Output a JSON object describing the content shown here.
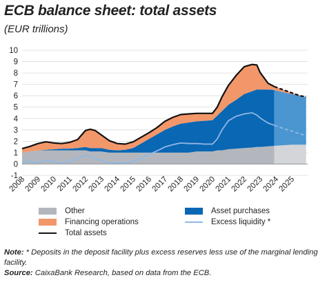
{
  "title": "ECB balance sheet: total assets",
  "subtitle": "(EUR trillions)",
  "note_label": "Note:",
  "note_text": "* Deposits in the deposit facility plus excess reserves less use of the marginal lending facility.",
  "source_label": "Source:",
  "source_text": "CaixaBank Research, based on data from the ECB.",
  "colors": {
    "other": "#b3b7bd",
    "other_proj": "#d3d5d9",
    "asset_purchases": "#0a67b3",
    "asset_purchases_proj": "#4b95d0",
    "financing_operations": "#f2976a",
    "excess_liquidity": "#8fb8e6",
    "total_assets": "#111111"
  },
  "legend": [
    {
      "key": "other",
      "label": "Other",
      "kind": "rect"
    },
    {
      "key": "asset_purchases",
      "label": "Asset purchases",
      "kind": "rect"
    },
    {
      "key": "financing_operations",
      "label": "Financing operations",
      "kind": "rect"
    },
    {
      "key": "excess_liquidity",
      "label": "Excess liquidity *",
      "kind": "line"
    },
    {
      "key": "total_assets",
      "label": "Total assets",
      "kind": "line"
    }
  ],
  "chart_data": {
    "type": "area",
    "ylim": [
      -1,
      10
    ],
    "yticks": [
      -1,
      0,
      1,
      2,
      3,
      4,
      5,
      6,
      7,
      8,
      9,
      10
    ],
    "xlim": [
      2008,
      2026
    ],
    "xticks": [
      "2008",
      "2009",
      "2010",
      "2011",
      "2012",
      "2013",
      "2014",
      "2015",
      "2016",
      "2017",
      "2018",
      "2019",
      "2020",
      "2021",
      "2022",
      "2023",
      "2024",
      "2025"
    ],
    "projection_start": 2023.9,
    "x": [
      2008.0,
      2008.5,
      2009.0,
      2009.5,
      2010.0,
      2010.5,
      2011.0,
      2011.5,
      2012.0,
      2012.3,
      2012.6,
      2013.0,
      2013.5,
      2014.0,
      2014.5,
      2015.0,
      2015.5,
      2016.0,
      2016.5,
      2017.0,
      2017.5,
      2018.0,
      2018.5,
      2019.0,
      2019.5,
      2020.0,
      2020.3,
      2020.6,
      2021.0,
      2021.5,
      2022.0,
      2022.5,
      2022.8,
      2023.0,
      2023.5,
      2023.9,
      2024.5,
      2025.0,
      2025.5,
      2025.9
    ],
    "series": [
      {
        "name": "Other",
        "key": "other",
        "values": [
          1.0,
          1.1,
          1.2,
          1.2,
          1.2,
          1.2,
          1.2,
          1.2,
          1.2,
          1.1,
          1.1,
          1.1,
          1.0,
          1.0,
          1.0,
          1.0,
          1.0,
          1.0,
          1.0,
          1.0,
          1.0,
          1.0,
          1.0,
          1.1,
          1.1,
          1.1,
          1.2,
          1.2,
          1.3,
          1.35,
          1.4,
          1.45,
          1.5,
          1.5,
          1.55,
          1.6,
          1.65,
          1.7,
          1.7,
          1.7
        ]
      },
      {
        "name": "Asset purchases",
        "key": "asset_purchases",
        "values": [
          0.0,
          0.0,
          0.0,
          0.05,
          0.1,
          0.15,
          0.15,
          0.2,
          0.3,
          0.3,
          0.3,
          0.3,
          0.25,
          0.2,
          0.25,
          0.4,
          0.8,
          1.2,
          1.6,
          2.0,
          2.3,
          2.55,
          2.65,
          2.65,
          2.7,
          2.75,
          3.05,
          3.45,
          3.9,
          4.3,
          4.75,
          4.95,
          5.05,
          5.05,
          5.0,
          4.9,
          4.65,
          4.45,
          4.3,
          4.2
        ]
      },
      {
        "name": "Financing operations",
        "key": "financing_operations",
        "values": [
          0.35,
          0.45,
          0.6,
          0.7,
          0.55,
          0.45,
          0.55,
          0.75,
          1.45,
          1.65,
          1.55,
          1.15,
          0.8,
          0.6,
          0.5,
          0.55,
          0.55,
          0.55,
          0.6,
          0.75,
          0.8,
          0.8,
          0.75,
          0.7,
          0.65,
          0.6,
          0.75,
          1.25,
          1.7,
          2.15,
          2.4,
          2.35,
          2.15,
          1.5,
          0.55,
          0.3,
          0.2,
          0.1,
          0.05,
          0.0
        ]
      }
    ],
    "lines": [
      {
        "name": "Total assets",
        "key": "total_assets",
        "values": [
          1.35,
          1.55,
          1.8,
          1.95,
          1.85,
          1.8,
          1.9,
          2.15,
          2.95,
          3.05,
          2.95,
          2.55,
          2.05,
          1.8,
          1.75,
          1.95,
          2.35,
          2.75,
          3.2,
          3.75,
          4.1,
          4.35,
          4.4,
          4.45,
          4.45,
          4.45,
          5.0,
          5.9,
          6.9,
          7.8,
          8.55,
          8.75,
          8.7,
          8.05,
          7.1,
          6.8,
          6.5,
          6.25,
          6.0,
          5.9
        ]
      },
      {
        "name": "Excess liquidity *",
        "key": "excess_liquidity",
        "values": [
          0.1,
          0.25,
          0.1,
          0.3,
          0.2,
          0.1,
          0.2,
          0.5,
          0.75,
          0.65,
          0.5,
          0.3,
          0.1,
          0.1,
          0.1,
          0.2,
          0.5,
          0.85,
          1.15,
          1.5,
          1.7,
          1.85,
          1.8,
          1.8,
          1.75,
          1.75,
          2.2,
          3.0,
          3.8,
          4.2,
          4.4,
          4.5,
          4.3,
          4.05,
          3.6,
          3.4,
          3.1,
          2.9,
          2.65,
          2.5
        ]
      }
    ]
  }
}
